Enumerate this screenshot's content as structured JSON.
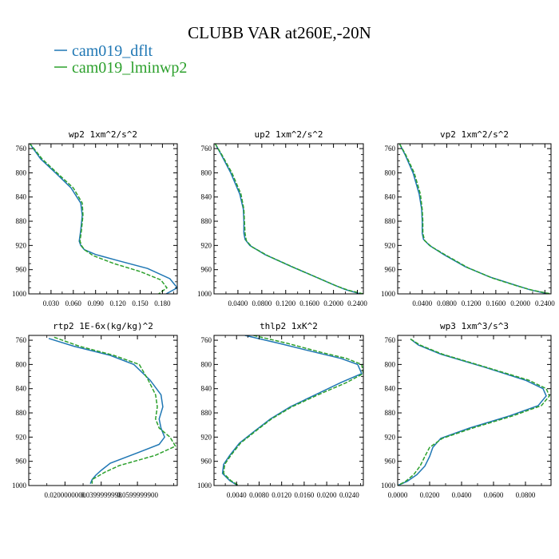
{
  "figure": {
    "title": "CLUBB VAR at260E,-20N",
    "legend": [
      {
        "label": "cam019_dflt",
        "color": "#1f77b4"
      },
      {
        "label": "cam019_lminwp2",
        "color": "#2ca02c"
      }
    ]
  },
  "chart_data": [
    {
      "type": "line",
      "title": "wp2  1xm^2/s^2",
      "xlim": [
        0.0,
        0.2
      ],
      "ylim": [
        1000,
        752
      ],
      "xticks": [
        0.03,
        0.06,
        0.09,
        0.12,
        0.15,
        0.18
      ],
      "xtick_labels": [
        "0.030",
        "0.060",
        "0.090",
        "0.120",
        "0.150",
        "0.180"
      ],
      "yticks": [
        760,
        800,
        840,
        880,
        920,
        960,
        1000
      ],
      "ytick_labels": [
        "760",
        "800",
        "840",
        "880",
        "920",
        "960",
        "1000"
      ],
      "series": [
        {
          "name": "cam019_dflt",
          "color": "#1f77b4",
          "x": [
            0.001,
            0.006,
            0.016,
            0.036,
            0.057,
            0.07,
            0.072,
            0.07,
            0.068,
            0.07,
            0.075,
            0.09,
            0.12,
            0.16,
            0.19,
            0.2,
            0.185
          ],
          "y": [
            751,
            760,
            777,
            800,
            825,
            850,
            870,
            895,
            913,
            920,
            927,
            935,
            945,
            958,
            975,
            990,
            1000
          ]
        },
        {
          "name": "cam019_lminwp2",
          "color": "#2ca02c",
          "x": [
            0.001,
            0.007,
            0.018,
            0.038,
            0.06,
            0.072,
            0.073,
            0.071,
            0.069,
            0.071,
            0.075,
            0.087,
            0.115,
            0.15,
            0.178,
            0.186,
            0.175
          ],
          "y": [
            751,
            760,
            777,
            800,
            825,
            850,
            870,
            895,
            913,
            920,
            927,
            937,
            950,
            963,
            977,
            990,
            1000
          ]
        }
      ]
    },
    {
      "type": "line",
      "title": "up2  1xm^2/s^2",
      "xlim": [
        0.0,
        0.25
      ],
      "ylim": [
        1000,
        752
      ],
      "xticks": [
        0.04,
        0.08,
        0.12,
        0.16,
        0.2,
        0.24
      ],
      "xtick_labels": [
        "0.0400",
        "0.0800",
        "0.1200",
        "0.1600",
        "0.2000",
        "0.2400"
      ],
      "yticks": [
        760,
        800,
        840,
        880,
        920,
        960,
        1000
      ],
      "ytick_labels": [
        "760",
        "800",
        "840",
        "880",
        "920",
        "960",
        "1000"
      ],
      "series": [
        {
          "name": "cam019_dflt",
          "color": "#1f77b4",
          "x": [
            0.002,
            0.012,
            0.028,
            0.043,
            0.049,
            0.05,
            0.05,
            0.052,
            0.06,
            0.085,
            0.13,
            0.17,
            0.2,
            0.22,
            0.245
          ],
          "y": [
            752,
            770,
            800,
            835,
            860,
            880,
            900,
            910,
            920,
            935,
            955,
            972,
            985,
            993,
            1000
          ]
        },
        {
          "name": "cam019_lminwp2",
          "color": "#2ca02c",
          "x": [
            0.002,
            0.013,
            0.03,
            0.045,
            0.05,
            0.051,
            0.052,
            0.054,
            0.063,
            0.09,
            0.135,
            0.175,
            0.205,
            0.225,
            0.25
          ],
          "y": [
            752,
            770,
            800,
            835,
            860,
            880,
            900,
            912,
            922,
            937,
            957,
            974,
            987,
            994,
            1000
          ]
        }
      ]
    },
    {
      "type": "line",
      "title": "vp2  1xm^2/s^2",
      "xlim": [
        0.0,
        0.25
      ],
      "ylim": [
        1000,
        752
      ],
      "xticks": [
        0.04,
        0.08,
        0.12,
        0.16,
        0.2,
        0.24
      ],
      "xtick_labels": [
        "0.0400",
        "0.0800",
        "0.1200",
        "0.1600",
        "0.2000",
        "0.2400"
      ],
      "yticks": [
        760,
        800,
        840,
        880,
        920,
        960,
        1000
      ],
      "ytick_labels": [
        "760",
        "800",
        "840",
        "880",
        "920",
        "960",
        "1000"
      ],
      "series": [
        {
          "name": "cam019_dflt",
          "color": "#1f77b4",
          "x": [
            0.003,
            0.012,
            0.025,
            0.035,
            0.039,
            0.04,
            0.04,
            0.042,
            0.052,
            0.075,
            0.11,
            0.15,
            0.19,
            0.215,
            0.245
          ],
          "y": [
            752,
            770,
            800,
            835,
            860,
            880,
            900,
            910,
            920,
            935,
            955,
            972,
            985,
            993,
            1000
          ]
        },
        {
          "name": "cam019_lminwp2",
          "color": "#2ca02c",
          "x": [
            0.003,
            0.013,
            0.027,
            0.037,
            0.04,
            0.041,
            0.041,
            0.044,
            0.055,
            0.08,
            0.115,
            0.155,
            0.195,
            0.22,
            0.25
          ],
          "y": [
            752,
            770,
            800,
            835,
            860,
            880,
            900,
            912,
            922,
            937,
            957,
            974,
            987,
            994,
            1000
          ]
        }
      ]
    },
    {
      "type": "line",
      "title": "rtp2  1E-6x(kg/kg)^2",
      "xlim": [
        0.0,
        0.082
      ],
      "ylim": [
        1000,
        752
      ],
      "xticks": [
        0.02,
        0.04,
        0.06
      ],
      "xtick_labels": [
        "0.0200000000",
        "0.0399999998",
        "0.0599999900"
      ],
      "yticks": [
        760,
        800,
        840,
        880,
        920,
        960,
        1000
      ],
      "ytick_labels": [
        "760",
        "800",
        "840",
        "880",
        "920",
        "960",
        "1000"
      ],
      "series": [
        {
          "name": "cam019_dflt",
          "color": "#1f77b4",
          "x": [
            0.011,
            0.025,
            0.045,
            0.058,
            0.067,
            0.073,
            0.074,
            0.072,
            0.073,
            0.075,
            0.072,
            0.06,
            0.045,
            0.04,
            0.037,
            0.035,
            0.034
          ],
          "y": [
            757,
            770,
            785,
            800,
            826,
            850,
            870,
            890,
            905,
            920,
            932,
            946,
            963,
            975,
            983,
            990,
            997
          ]
        },
        {
          "name": "cam019_lminwp2",
          "color": "#2ca02c",
          "x": [
            0.014,
            0.028,
            0.047,
            0.061,
            0.066,
            0.07,
            0.071,
            0.07,
            0.072,
            0.078,
            0.081,
            0.07,
            0.05,
            0.042,
            0.038,
            0.035,
            0.035
          ],
          "y": [
            755,
            770,
            785,
            800,
            826,
            850,
            870,
            890,
            905,
            920,
            935,
            950,
            967,
            978,
            985,
            990,
            997
          ]
        }
      ]
    },
    {
      "type": "line",
      "title": "thlp2  1xK^2",
      "xlim": [
        0.0,
        0.0265
      ],
      "ylim": [
        1000,
        752
      ],
      "xticks": [
        0.004,
        0.008,
        0.012,
        0.016,
        0.02,
        0.024
      ],
      "xtick_labels": [
        "0.0040",
        "0.0080",
        "0.0120",
        "0.0160",
        "0.0200",
        "0.0240"
      ],
      "yticks": [
        760,
        800,
        840,
        880,
        920,
        960,
        1000
      ],
      "ytick_labels": [
        "760",
        "800",
        "840",
        "880",
        "920",
        "960",
        "1000"
      ],
      "series": [
        {
          "name": "cam019_dflt",
          "color": "#1f77b4",
          "x": [
            0.0055,
            0.0115,
            0.018,
            0.0225,
            0.0255,
            0.0262,
            0.0225,
            0.018,
            0.0135,
            0.01,
            0.0072,
            0.0045,
            0.0028,
            0.0017,
            0.0015,
            0.0028,
            0.0042
          ],
          "y": [
            752,
            765,
            780,
            790,
            800,
            815,
            830,
            850,
            870,
            890,
            910,
            930,
            950,
            965,
            980,
            992,
            1000
          ]
        },
        {
          "name": "cam019_lminwp2",
          "color": "#2ca02c",
          "x": [
            0.007,
            0.013,
            0.019,
            0.0235,
            0.0262,
            0.0265,
            0.0235,
            0.0185,
            0.0138,
            0.0102,
            0.0074,
            0.0047,
            0.003,
            0.0019,
            0.0017,
            0.003,
            0.0044
          ],
          "y": [
            752,
            765,
            780,
            790,
            800,
            815,
            830,
            850,
            870,
            890,
            910,
            930,
            950,
            965,
            980,
            992,
            1000
          ]
        }
      ]
    },
    {
      "type": "line",
      "title": "wp3  1xm^3/s^3",
      "xlim": [
        0.0,
        0.096
      ],
      "ylim": [
        1000,
        752
      ],
      "xticks": [
        0.0,
        0.02,
        0.04,
        0.06,
        0.08
      ],
      "xtick_labels": [
        "0.0000",
        "0.0200",
        "0.0400",
        "0.0600",
        "0.0800"
      ],
      "yticks": [
        760,
        800,
        840,
        880,
        920,
        960,
        1000
      ],
      "ytick_labels": [
        "760",
        "800",
        "840",
        "880",
        "920",
        "960",
        "1000"
      ],
      "series": [
        {
          "name": "cam019_dflt",
          "color": "#1f77b4",
          "x": [
            0.008,
            0.013,
            0.027,
            0.055,
            0.08,
            0.091,
            0.093,
            0.088,
            0.07,
            0.045,
            0.027,
            0.022,
            0.02,
            0.017,
            0.012,
            0.006,
            0.0
          ],
          "y": [
            758,
            768,
            783,
            805,
            826,
            840,
            852,
            868,
            885,
            905,
            922,
            937,
            952,
            968,
            982,
            993,
            1000
          ]
        },
        {
          "name": "cam019_lminwp2",
          "color": "#2ca02c",
          "x": [
            0.008,
            0.014,
            0.028,
            0.056,
            0.082,
            0.093,
            0.095,
            0.09,
            0.072,
            0.047,
            0.028,
            0.02,
            0.017,
            0.014,
            0.01,
            0.005,
            0.0
          ],
          "y": [
            758,
            768,
            783,
            805,
            826,
            840,
            852,
            868,
            885,
            905,
            922,
            937,
            952,
            968,
            982,
            993,
            1000
          ]
        }
      ]
    }
  ]
}
